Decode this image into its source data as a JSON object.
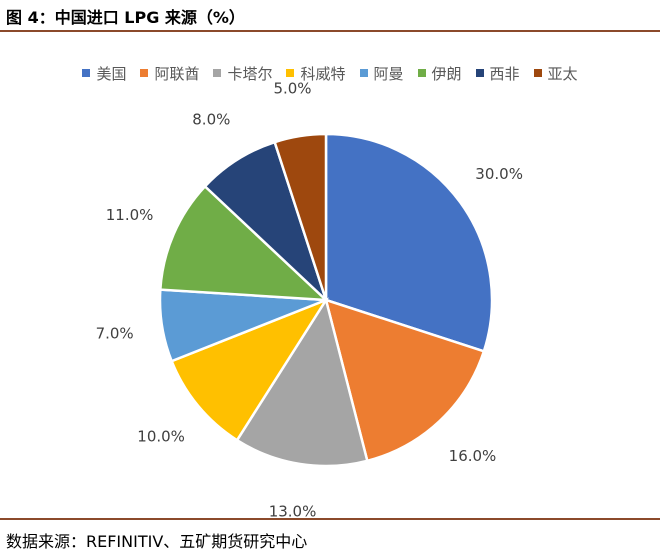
{
  "header": {
    "title": "图 4：中国进口 LPG 来源（%）"
  },
  "footer": {
    "source": "数据来源：REFINITIV、五矿期货研究中心"
  },
  "chart_data": {
    "type": "pie",
    "title": "",
    "legend_position": "top",
    "start_angle_deg": 0,
    "direction": "clockwise",
    "categories": [
      "美国",
      "阿联酋",
      "卡塔尔",
      "科威特",
      "阿曼",
      "伊朗",
      "西非",
      "亚太"
    ],
    "values": [
      30.0,
      16.0,
      13.0,
      10.0,
      7.0,
      11.0,
      8.0,
      5.0
    ],
    "data_labels": [
      "30.0%",
      "16.0%",
      "13.0%",
      "10.0%",
      "7.0%",
      "11.0%",
      "8.0%",
      "5.0%"
    ],
    "colors": [
      "#4472C4",
      "#ED7D31",
      "#A5A5A5",
      "#FFC000",
      "#5B9BD5",
      "#70AD47",
      "#264478",
      "#9E480E"
    ]
  }
}
